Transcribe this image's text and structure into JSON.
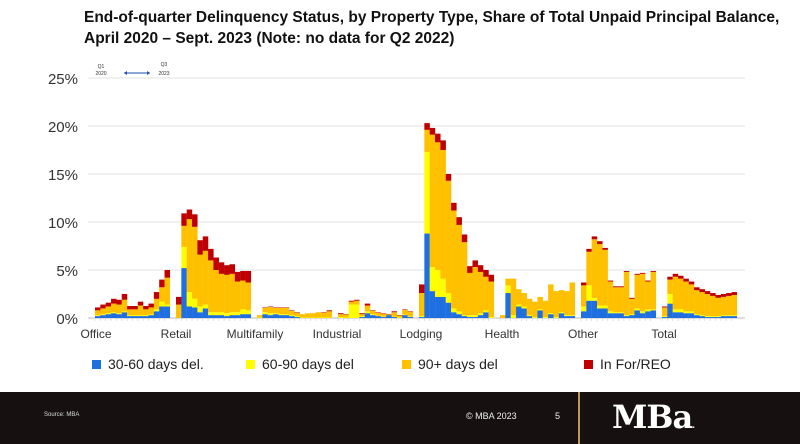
{
  "chart_data": {
    "type": "bar",
    "stacked": true,
    "title": "End-of-quarter Delinquency Status, by Property Type, Share of Total Unpaid Principal Balance, April 2020 – Sept. 2023 (Note: no data for Q2 2022)",
    "ylim": [
      0,
      25
    ],
    "yticks": [
      "0%",
      "5%",
      "10%",
      "15%",
      "20%",
      "25%"
    ],
    "grid": true,
    "legend_position": "bottom",
    "annotation": {
      "start_top": "Q1",
      "start_bottom": "2020",
      "end_top": "Q3",
      "end_bottom": "2023"
    },
    "series_meta": [
      {
        "key": "d30",
        "name": "30-60 days del.",
        "color": "#1f6fe0"
      },
      {
        "key": "d60",
        "name": "60-90 days del",
        "color": "#ffff00"
      },
      {
        "key": "d90",
        "name": "90+ days del",
        "color": "#ffc000"
      },
      {
        "key": "reo",
        "name": "In For/REO",
        "color": "#c00000"
      }
    ],
    "groups": [
      {
        "label": "Office",
        "d30": [
          0.2,
          0.3,
          0.4,
          0.5,
          0.4,
          0.6,
          0.2,
          0.2,
          0.2,
          0.2,
          0.3,
          0.7,
          1.2,
          1.2
        ],
        "d60": [
          0.1,
          0.1,
          0.1,
          0.1,
          0.1,
          0.1,
          0.1,
          0.1,
          0.1,
          0.1,
          0.1,
          0.2,
          0.5,
          0.2
        ],
        "d90": [
          0.5,
          0.6,
          0.7,
          0.9,
          0.9,
          1.2,
          0.6,
          0.6,
          1.0,
          0.6,
          0.7,
          1.1,
          1.5,
          2.8
        ],
        "reo": [
          0.3,
          0.4,
          0.4,
          0.5,
          0.5,
          0.6,
          0.35,
          0.35,
          0.4,
          0.35,
          0.4,
          0.7,
          0.8,
          0.8
        ]
      },
      {
        "label": "Retail",
        "d30": [
          0,
          5.2,
          1.2,
          1.1,
          0.6,
          1.0,
          0.3,
          0.3,
          0.3,
          0.2,
          0.3,
          0.3,
          0.4,
          0.4
        ],
        "d60": [
          0,
          2.2,
          1.5,
          0.9,
          0.6,
          0.4,
          0.3,
          0.3,
          0.3,
          0.3,
          0.3,
          0.3,
          0.5,
          0.4
        ],
        "d90": [
          1.4,
          2.2,
          7.6,
          7.5,
          5.4,
          5.6,
          5.4,
          4.4,
          4.0,
          4.0,
          4.0,
          3.2,
          3.0,
          2.9
        ],
        "reo": [
          0.8,
          1.3,
          1.0,
          1.3,
          1.5,
          1.5,
          1.2,
          1.3,
          1.2,
          1.0,
          1.0,
          1.0,
          1.0,
          1.2
        ]
      },
      {
        "label": "Multifamily",
        "d30": [
          0,
          0.4,
          0.3,
          0.4,
          0.3,
          0.3,
          0.2,
          0.1,
          0,
          0,
          0,
          0,
          0,
          0
        ],
        "d60": [
          0.05,
          0.2,
          0.2,
          0.1,
          0.1,
          0.1,
          0.1,
          0.1,
          0.05,
          0.05,
          0.05,
          0.05,
          0.05,
          0.05
        ],
        "d90": [
          0.25,
          0.45,
          0.65,
          0.55,
          0.65,
          0.65,
          0.45,
          0.35,
          0.35,
          0.45,
          0.45,
          0.55,
          0.5,
          0.65
        ],
        "reo": [
          0,
          0.05,
          0.05,
          0.05,
          0.05,
          0.05,
          0.05,
          0.05,
          0,
          0,
          0,
          0,
          0.05,
          0.1
        ]
      },
      {
        "label": "Industrial",
        "d30": [
          0,
          0,
          0,
          0,
          0.1,
          0.5,
          0.3,
          0.2,
          0.1,
          0.3,
          0.1,
          0,
          0.3,
          0.1
        ],
        "d60": [
          0.1,
          0.05,
          1.4,
          1.4,
          0.1,
          0.2,
          0.1,
          0.05,
          0.05,
          0.05,
          0.05,
          0.05,
          0.05,
          0.05
        ],
        "d90": [
          0.3,
          0.3,
          0.3,
          0.4,
          0.2,
          0.6,
          0.35,
          0.3,
          0.3,
          0,
          0.45,
          0.2,
          0.5,
          0.5
        ],
        "reo": [
          0.1,
          0.05,
          0.1,
          0.1,
          0.1,
          0.2,
          0.05,
          0.05,
          0.05,
          0.05,
          0.1,
          0.05,
          0.05,
          0.05
        ]
      },
      {
        "label": "Lodging",
        "d30": [
          0.1,
          8.8,
          2.8,
          2.2,
          2.2,
          1.6,
          0.6,
          0.4,
          0.2,
          0.1,
          0.1,
          0.3,
          0.6,
          0
        ],
        "d60": [
          0.1,
          8.5,
          2.5,
          2.8,
          1.9,
          1.0,
          0.4,
          0.3,
          0.1,
          0.2,
          0.2,
          0.2,
          0.2,
          0.1
        ],
        "d90": [
          2.4,
          2.3,
          13.8,
          13.3,
          13.4,
          11.7,
          10.2,
          9.0,
          7.6,
          4.4,
          5.0,
          4.3,
          3.5,
          3.7
        ],
        "reo": [
          0.9,
          0.7,
          0.7,
          0.9,
          1.0,
          0.7,
          0.8,
          0.8,
          0.8,
          0.7,
          0.7,
          0.7,
          0.7,
          0.7
        ]
      },
      {
        "label": "Health",
        "d30": [
          0,
          2.6,
          0,
          1.2,
          1.0,
          0.2,
          0,
          0.8,
          0,
          0.4,
          0,
          0.5,
          0.2,
          0.2
        ],
        "d60": [
          0,
          0.8,
          0.3,
          0.2,
          0.2,
          0.1,
          0.1,
          0.1,
          0.1,
          0.1,
          0.1,
          0.1,
          0.1,
          0.1
        ],
        "d90": [
          0.3,
          0.7,
          3.8,
          1.6,
          1.4,
          1.7,
          1.6,
          1.3,
          1.7,
          3.0,
          2.7,
          2.3,
          2.5,
          3.4
        ],
        "reo": [
          0,
          0,
          0,
          0,
          0,
          0,
          0,
          0,
          0,
          0,
          0,
          0,
          0,
          0
        ]
      },
      {
        "label": "Other",
        "d30": [
          0.7,
          1.8,
          1.8,
          1.0,
          1.0,
          0.5,
          0.5,
          0.5,
          0.2,
          0.3,
          0.8,
          0.5,
          0.7,
          0.8
        ],
        "d60": [
          0.5,
          1.6,
          0.3,
          0.3,
          0.3,
          0.2,
          0.1,
          0.1,
          0.1,
          0.1,
          0.2,
          0.2,
          0.2,
          0.1
        ],
        "d90": [
          2.2,
          3.5,
          6.1,
          6.4,
          5.8,
          3.1,
          2.6,
          2.6,
          4.5,
          1.6,
          3.5,
          3.9,
          2.9,
          3.9
        ],
        "reo": [
          0.3,
          0.3,
          0.3,
          0.3,
          0.2,
          0.1,
          0.1,
          0.1,
          0.1,
          0.1,
          0.1,
          0.1,
          0.1,
          0.1
        ]
      },
      {
        "label": "Total",
        "d30": [
          0.1,
          1.5,
          0.6,
          0.6,
          0.5,
          0.5,
          0.3,
          0.2,
          0.1,
          0.1,
          0.1,
          0.2,
          0.2,
          0.2
        ],
        "d60": [
          0.1,
          1.0,
          0.3,
          0.3,
          0.2,
          0.2,
          0.1,
          0.1,
          0.1,
          0.1,
          0.1,
          0.1,
          0.1,
          0.1
        ],
        "d90": [
          0.9,
          1.5,
          3.4,
          3.2,
          3.1,
          2.8,
          2.5,
          2.4,
          2.3,
          2.1,
          1.9,
          1.9,
          2.0,
          2.1
        ],
        "reo": [
          0.1,
          0.3,
          0.3,
          0.3,
          0.3,
          0.3,
          0.3,
          0.3,
          0.3,
          0.3,
          0.3,
          0.3,
          0.3,
          0.3
        ]
      }
    ]
  },
  "legend": [
    "30-60 days del.",
    "60-90 days del",
    "90+ days del",
    "In For/REO"
  ],
  "footer": {
    "source": "Source: MBA",
    "copyright": "© MBA 2023",
    "page": "5",
    "logo": "MBA."
  }
}
